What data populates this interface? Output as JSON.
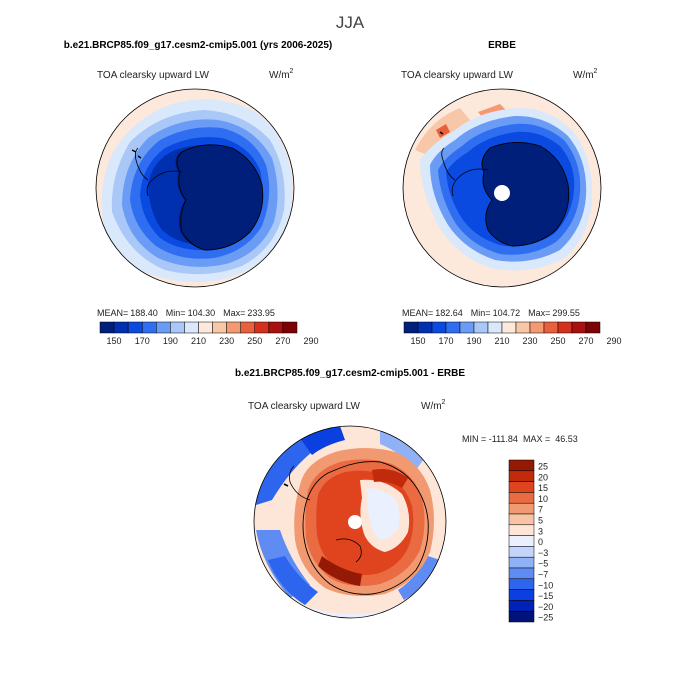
{
  "figure": {
    "season": "JJA"
  },
  "colors": {
    "abs_scale": [
      "#001f7a",
      "#0030b0",
      "#0a4ae0",
      "#2f6ef0",
      "#6a9cf5",
      "#a9c8f8",
      "#d9e8fb",
      "#fde9dc",
      "#f8c7a8",
      "#f39a72",
      "#e9603f",
      "#d4311c",
      "#a8110f",
      "#7d0206"
    ],
    "diff_scale": [
      "#00137a",
      "#0022b8",
      "#0a3fe0",
      "#2e65ee",
      "#5f8cf2",
      "#91b1f6",
      "#c3d5fa",
      "#eaf0fd",
      "#fde6d8",
      "#f7c4a6",
      "#f19a72",
      "#ea6a42",
      "#e0441f",
      "#c12a0c",
      "#941a05"
    ]
  },
  "chart_data": [
    {
      "type": "heatmap",
      "projection": "south-polar-stereographic",
      "title": "b.e21.BRCP85.f09_g17.cesm2-cmip5.001 (yrs 2006-2025)",
      "left_label": "TOA clearsky upward LW",
      "right_label_base": "W/m",
      "right_label_exp": "2",
      "stats": {
        "mean": "188.40",
        "min": "104.30",
        "max": "233.95"
      },
      "stats_labels": {
        "mean": "MEAN=",
        "min": "Min=",
        "max": "Max="
      },
      "colorbar_ticks": [
        "150",
        "170",
        "190",
        "210",
        "230",
        "250",
        "270",
        "290"
      ]
    },
    {
      "type": "heatmap",
      "projection": "south-polar-stereographic",
      "title": "ERBE",
      "left_label": "TOA clearsky upward LW",
      "right_label_base": "W/m",
      "right_label_exp": "2",
      "stats": {
        "mean": "182.64",
        "min": "104.72",
        "max": "299.55"
      },
      "stats_labels": {
        "mean": "MEAN=",
        "min": "Min=",
        "max": "Max="
      },
      "colorbar_ticks": [
        "150",
        "170",
        "190",
        "210",
        "230",
        "250",
        "270",
        "290"
      ]
    },
    {
      "type": "heatmap",
      "projection": "south-polar-stereographic",
      "title": "b.e21.BRCP85.f09_g17.cesm2-cmip5.001 - ERBE",
      "left_label": "TOA clearsky upward LW",
      "right_label_base": "W/m",
      "right_label_exp": "2",
      "minmax_text": "MIN = -111.84  MAX =  46.53",
      "colorbar_ticks": [
        "25",
        "20",
        "15",
        "10",
        "7",
        "5",
        "3",
        "0",
        "−3",
        "−5",
        "−7",
        "−10",
        "−15",
        "−20",
        "−25"
      ]
    }
  ]
}
